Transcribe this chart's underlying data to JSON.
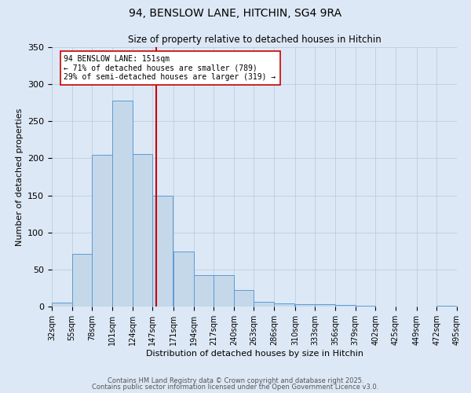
{
  "title": "94, BENSLOW LANE, HITCHIN, SG4 9RA",
  "subtitle": "Size of property relative to detached houses in Hitchin",
  "xlabel": "Distribution of detached houses by size in Hitchin",
  "ylabel": "Number of detached properties",
  "bar_left_edges": [
    32,
    55,
    78,
    101,
    124,
    147,
    171,
    194,
    217,
    240,
    263,
    286,
    310,
    333,
    356,
    379,
    402,
    425,
    449,
    472
  ],
  "bar_heights": [
    5,
    71,
    205,
    278,
    206,
    150,
    74,
    42,
    42,
    22,
    6,
    4,
    3,
    3,
    2,
    1,
    0,
    0,
    0,
    1
  ],
  "bin_width": 23,
  "tick_labels": [
    "32sqm",
    "55sqm",
    "78sqm",
    "101sqm",
    "124sqm",
    "147sqm",
    "171sqm",
    "194sqm",
    "217sqm",
    "240sqm",
    "263sqm",
    "286sqm",
    "310sqm",
    "333sqm",
    "356sqm",
    "379sqm",
    "402sqm",
    "425sqm",
    "449sqm",
    "472sqm",
    "495sqm"
  ],
  "tick_positions": [
    32,
    55,
    78,
    101,
    124,
    147,
    171,
    194,
    217,
    240,
    263,
    286,
    310,
    333,
    356,
    379,
    402,
    425,
    449,
    472,
    495
  ],
  "vline_x": 151,
  "xlim": [
    32,
    495
  ],
  "ylim": [
    0,
    350
  ],
  "yticks": [
    0,
    50,
    100,
    150,
    200,
    250,
    300,
    350
  ],
  "bar_facecolor": "#c5d8ea",
  "bar_edgecolor": "#5b9bd5",
  "vline_color": "#cc0000",
  "background_color": "#dce8f5",
  "plot_bg_color": "#dce8f5",
  "grid_color": "#b8c8d8",
  "annotation_line1": "94 BENSLOW LANE: 151sqm",
  "annotation_line2": "← 71% of detached houses are smaller (789)",
  "annotation_line3": "29% of semi-detached houses are larger (319) →",
  "footer1": "Contains HM Land Registry data © Crown copyright and database right 2025.",
  "footer2": "Contains public sector information licensed under the Open Government Licence v3.0.",
  "title_fontsize": 10,
  "subtitle_fontsize": 8.5,
  "axis_label_fontsize": 8,
  "tick_fontsize": 7,
  "annotation_fontsize": 7,
  "footer_fontsize": 6
}
